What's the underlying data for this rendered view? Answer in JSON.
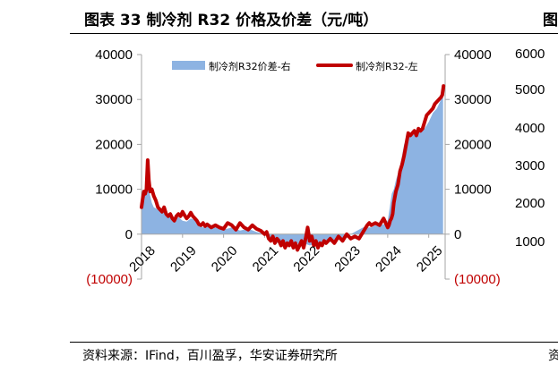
{
  "title": "图表 33 制冷剂 R32 价格及价差（元/吨）",
  "source": "资料来源：IFind，百川盈孚，华安证券研究所",
  "right_panel": {
    "title_partial": "图",
    "y_ticks": [
      "6000",
      "5000",
      "4000",
      "3000",
      "2000",
      "1000"
    ],
    "source_partial": "资"
  },
  "chart_data": {
    "type": "line",
    "title": "",
    "xlabel": "",
    "ylabel": "",
    "x_ticks": [
      "2018",
      "2019",
      "2020",
      "2021",
      "2022",
      "2023",
      "2024",
      "2025"
    ],
    "left_axis_ticks": [
      "40000",
      "30000",
      "20000",
      "10000",
      "0",
      "(10000)"
    ],
    "right_axis_ticks": [
      "40000",
      "30000",
      "20000",
      "10000",
      "0",
      "(10000)"
    ],
    "ylim": [
      -10000,
      40000
    ],
    "xlim": [
      2018.0,
      2025.4
    ],
    "legend_position": "top",
    "colors": {
      "spread": "#8db3e2",
      "price": "#c00000",
      "negative_tick": "#c00000"
    },
    "series": [
      {
        "name": "制冷剂R32价差-右",
        "kind": "area",
        "axis": "right",
        "x": [
          2018.0,
          2018.05,
          2018.1,
          2018.15,
          2018.2,
          2018.25,
          2018.3,
          2018.4,
          2018.5,
          2018.6,
          2018.7,
          2018.8,
          2018.9,
          2019.0,
          2019.1,
          2019.2,
          2019.3,
          2019.4,
          2019.5,
          2019.6,
          2019.8,
          2020.0,
          2020.2,
          2020.4,
          2020.6,
          2020.8,
          2021.0,
          2021.1,
          2021.2,
          2021.3,
          2021.45,
          2021.6,
          2021.7,
          2021.8,
          2021.9,
          2022.0,
          2022.1,
          2022.2,
          2022.3,
          2022.4,
          2022.5,
          2022.7,
          2022.9,
          2023.0,
          2023.2,
          2023.4,
          2023.6,
          2023.7,
          2023.8,
          2023.9,
          2024.0,
          2024.05,
          2024.1,
          2024.15,
          2024.2,
          2024.3,
          2024.4,
          2024.5,
          2024.6,
          2024.7,
          2024.8,
          2024.9,
          2025.0,
          2025.1,
          2025.2,
          2025.3,
          2025.35
        ],
        "values": [
          5500,
          8000,
          10000,
          10500,
          9000,
          7000,
          6000,
          5500,
          5200,
          4500,
          4000,
          3500,
          3800,
          3000,
          2800,
          3500,
          3200,
          2000,
          1500,
          1800,
          1500,
          1000,
          1500,
          800,
          1200,
          500,
          0,
          -800,
          -1500,
          -2000,
          -1800,
          -2500,
          -3000,
          -2200,
          -2000,
          -2200,
          -2500,
          -2300,
          -2800,
          -2500,
          -2000,
          -1500,
          -1000,
          -500,
          500,
          1500,
          1500,
          2000,
          2000,
          2200,
          3000,
          6000,
          9000,
          10000,
          12000,
          15000,
          20000,
          22000,
          22000,
          22500,
          23000,
          23500,
          25000,
          27000,
          28000,
          30000,
          31000
        ]
      },
      {
        "name": "制冷剂R32-左",
        "kind": "line",
        "axis": "left",
        "x": [
          2018.0,
          2018.03,
          2018.06,
          2018.09,
          2018.12,
          2018.15,
          2018.18,
          2018.21,
          2018.25,
          2018.3,
          2018.35,
          2018.4,
          2018.45,
          2018.5,
          2018.55,
          2018.6,
          2018.65,
          2018.7,
          2018.75,
          2018.8,
          2018.85,
          2018.9,
          2018.95,
          2019.0,
          2019.05,
          2019.1,
          2019.15,
          2019.2,
          2019.25,
          2019.3,
          2019.35,
          2019.4,
          2019.45,
          2019.5,
          2019.55,
          2019.6,
          2019.7,
          2019.8,
          2019.9,
          2020.0,
          2020.1,
          2020.2,
          2020.3,
          2020.4,
          2020.5,
          2020.6,
          2020.7,
          2020.8,
          2020.9,
          2021.0,
          2021.05,
          2021.1,
          2021.15,
          2021.2,
          2021.25,
          2021.3,
          2021.35,
          2021.4,
          2021.45,
          2021.5,
          2021.55,
          2021.6,
          2021.65,
          2021.7,
          2021.75,
          2021.8,
          2021.85,
          2021.9,
          2021.95,
          2022.0,
          2022.05,
          2022.1,
          2022.15,
          2022.2,
          2022.25,
          2022.3,
          2022.35,
          2022.4,
          2022.45,
          2022.5,
          2022.6,
          2022.7,
          2022.8,
          2022.9,
          2023.0,
          2023.1,
          2023.2,
          2023.3,
          2023.4,
          2023.5,
          2023.55,
          2023.6,
          2023.7,
          2023.8,
          2023.9,
          2024.0,
          2024.03,
          2024.06,
          2024.09,
          2024.12,
          2024.15,
          2024.2,
          2024.25,
          2024.3,
          2024.35,
          2024.4,
          2024.45,
          2024.5,
          2024.55,
          2024.6,
          2024.65,
          2024.7,
          2024.75,
          2024.8,
          2024.85,
          2024.9,
          2024.95,
          2025.0,
          2025.05,
          2025.1,
          2025.15,
          2025.2,
          2025.25,
          2025.3,
          2025.33,
          2025.36
        ],
        "values": [
          6000,
          8000,
          9500,
          9000,
          10000,
          16500,
          12000,
          9500,
          10000,
          8500,
          7500,
          6000,
          5500,
          5000,
          6000,
          4500,
          4000,
          4500,
          3500,
          3000,
          4000,
          4500,
          4000,
          5000,
          4200,
          3500,
          4000,
          4800,
          4000,
          3500,
          3000,
          2200,
          2000,
          2500,
          1800,
          2200,
          1500,
          2000,
          1500,
          1200,
          2500,
          2000,
          1000,
          2500,
          1500,
          1000,
          2000,
          1200,
          800,
          0,
          500,
          -1000,
          -1500,
          -500,
          -2000,
          -1000,
          -1500,
          -2500,
          -1500,
          -3000,
          -2000,
          -2500,
          -1500,
          -3000,
          -2000,
          -3500,
          -2500,
          -1500,
          -3000,
          -1000,
          1500,
          -1500,
          -500,
          -2500,
          -1500,
          -3000,
          -2000,
          -2500,
          -1500,
          -2000,
          -1000,
          -2000,
          -500,
          -1500,
          0,
          -1000,
          -500,
          -1000,
          500,
          2000,
          2500,
          2000,
          2500,
          2000,
          3500,
          1500,
          2000,
          3000,
          3500,
          4500,
          7000,
          9500,
          11000,
          14000,
          15500,
          17500,
          20000,
          22500,
          22000,
          22500,
          23000,
          22000,
          23500,
          23000,
          23500,
          25000,
          26500,
          27000,
          27500,
          28000,
          29000,
          29500,
          30000,
          30500,
          31000,
          33000
        ]
      }
    ]
  }
}
